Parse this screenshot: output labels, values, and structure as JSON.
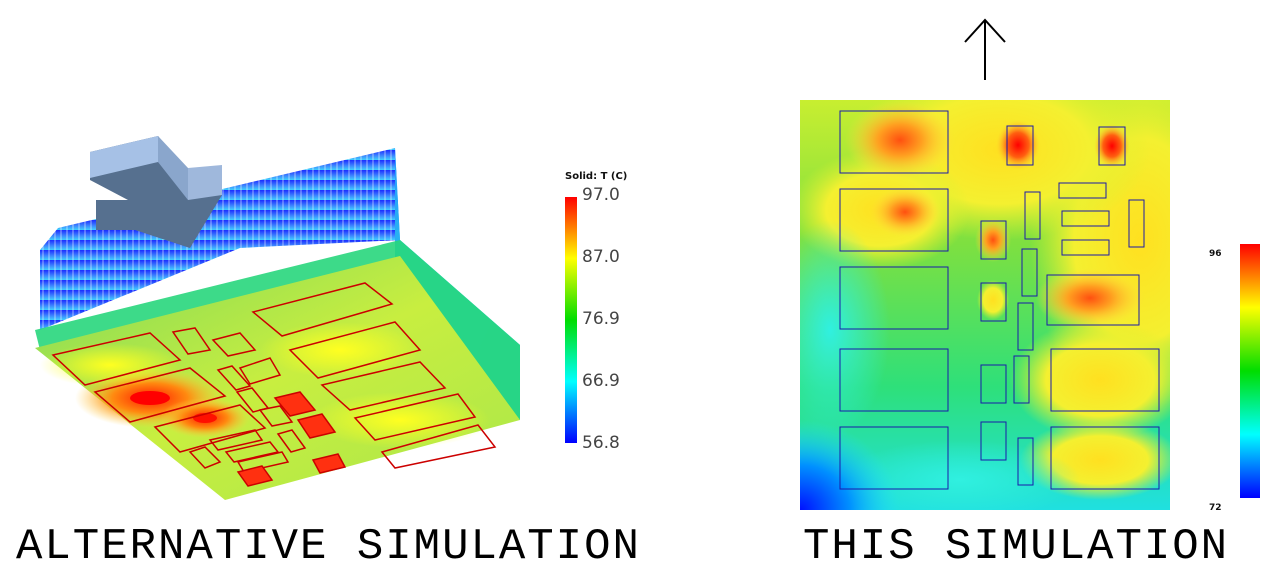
{
  "captions": {
    "left": "ALTERNATIVE SIMULATION",
    "right": "THIS SIMULATION"
  },
  "left_legend": {
    "title": "Solid: T (C)",
    "ticks": [
      "97.0",
      "87.0",
      "76.9",
      "66.9",
      "56.8"
    ]
  },
  "right_legend": {
    "max": "96",
    "min": "72"
  },
  "icons": {
    "airflow_arrow_left": "down-right-block-arrow-icon",
    "airflow_arrow_right": "up-arrow-icon"
  },
  "colors": {
    "hot": "#ff0000",
    "warm": "#ffff00",
    "mid": "#00dd00",
    "cool": "#00ffff",
    "cold": "#0000ff",
    "component_outline_left": "#cc0000",
    "component_outline_right": "#1a1aaa"
  }
}
